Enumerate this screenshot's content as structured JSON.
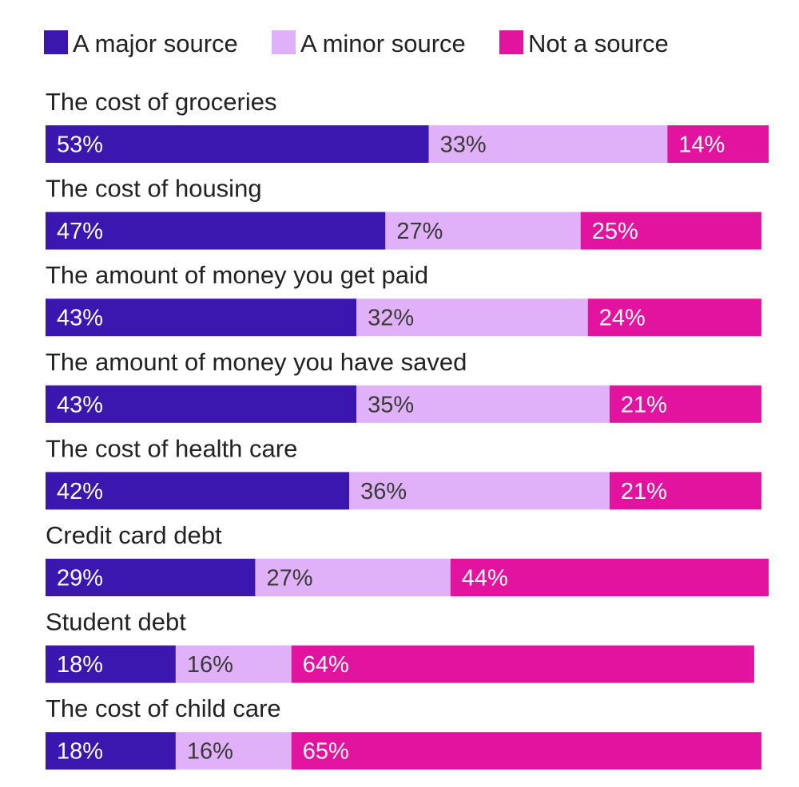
{
  "chart_data": {
    "type": "bar",
    "orientation": "horizontal",
    "stacked": true,
    "legend_position": "top-left",
    "grid": false,
    "categories": [
      "The cost of groceries",
      "The cost of housing",
      "The amount of money you get paid",
      "The amount of money you have saved",
      "The cost of health care",
      "Credit card debt",
      "Student debt",
      "The cost of child care"
    ],
    "series": [
      {
        "name": "A major source",
        "color": "#3b17b0",
        "label_color": "#ffffff",
        "values": [
          53,
          47,
          43,
          43,
          42,
          29,
          18,
          18
        ],
        "labels": [
          "53%",
          "47%",
          "43%",
          "43%",
          "42%",
          "29%",
          "18%",
          "18%"
        ]
      },
      {
        "name": "A minor source",
        "color": "#e0b1f8",
        "label_color": "#3a3a3a",
        "values": [
          33,
          27,
          32,
          35,
          36,
          27,
          16,
          16
        ],
        "labels": [
          "33%",
          "27%",
          "32%",
          "35%",
          "36%",
          "27%",
          "16%",
          "16%"
        ]
      },
      {
        "name": "Not a source",
        "color": "#e2139e",
        "label_color": "#ffffff",
        "values": [
          14,
          25,
          24,
          21,
          21,
          44,
          64,
          65
        ],
        "labels": [
          "14%",
          "25%",
          "24%",
          "21%",
          "21%",
          "44%",
          "64%",
          "65%"
        ]
      }
    ],
    "xlim": [
      0,
      100
    ]
  }
}
